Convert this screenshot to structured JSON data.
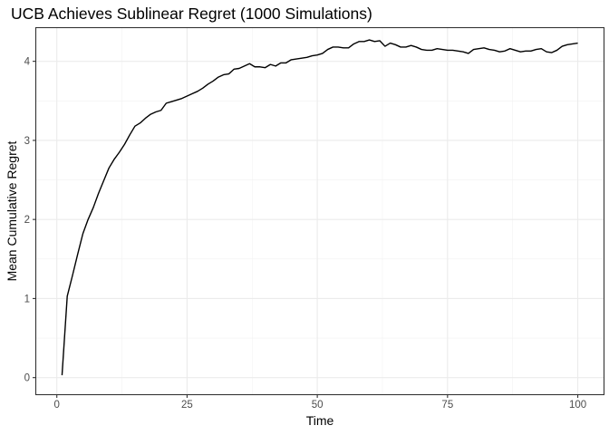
{
  "chart_data": {
    "type": "line",
    "title": "UCB Achieves Sublinear Regret (1000 Simulations)",
    "xlabel": "Time",
    "ylabel": "Mean Cumulative Regret",
    "xlim": [
      -3.95,
      104.95
    ],
    "ylim": [
      -0.21,
      4.42
    ],
    "xticks": [
      0,
      25,
      50,
      75,
      100
    ],
    "yticks": [
      0,
      1,
      2,
      3,
      4
    ],
    "grid": true,
    "legend": "none",
    "line_color": "#000000",
    "series": [
      {
        "x": [
          1,
          2,
          3,
          4,
          5,
          6,
          7,
          8,
          9,
          10,
          11,
          12,
          13,
          14,
          15,
          16,
          17,
          18,
          19,
          20,
          21,
          22,
          23,
          24,
          25,
          26,
          27,
          28,
          29,
          30,
          31,
          32,
          33,
          34,
          35,
          36,
          37,
          38,
          39,
          40,
          41,
          42,
          43,
          44,
          45,
          46,
          47,
          48,
          49,
          50,
          51,
          52,
          53,
          54,
          55,
          56,
          57,
          58,
          59,
          60,
          61,
          62,
          63,
          64,
          65,
          66,
          67,
          68,
          69,
          70,
          71,
          72,
          73,
          74,
          75,
          76,
          77,
          78,
          79,
          80,
          81,
          82,
          83,
          84,
          85,
          86,
          87,
          88,
          89,
          90,
          91,
          92,
          93,
          94,
          95,
          96,
          97,
          98,
          99,
          100
        ],
        "values": [
          0.03,
          1.03,
          1.29,
          1.56,
          1.82,
          2.0,
          2.15,
          2.33,
          2.49,
          2.65,
          2.76,
          2.85,
          2.95,
          3.07,
          3.18,
          3.22,
          3.28,
          3.33,
          3.36,
          3.38,
          3.47,
          3.49,
          3.51,
          3.53,
          3.56,
          3.59,
          3.62,
          3.66,
          3.71,
          3.75,
          3.8,
          3.83,
          3.84,
          3.9,
          3.91,
          3.94,
          3.97,
          3.93,
          3.93,
          3.92,
          3.96,
          3.94,
          3.98,
          3.98,
          4.02,
          4.03,
          4.04,
          4.05,
          4.07,
          4.08,
          4.1,
          4.15,
          4.18,
          4.18,
          4.17,
          4.17,
          4.22,
          4.25,
          4.25,
          4.27,
          4.25,
          4.26,
          4.19,
          4.23,
          4.21,
          4.18,
          4.18,
          4.2,
          4.18,
          4.15,
          4.14,
          4.14,
          4.16,
          4.15,
          4.14,
          4.14,
          4.13,
          4.12,
          4.1,
          4.15,
          4.16,
          4.17,
          4.15,
          4.14,
          4.12,
          4.13,
          4.16,
          4.14,
          4.12,
          4.13,
          4.13,
          4.15,
          4.16,
          4.12,
          4.11,
          4.14,
          4.19,
          4.21,
          4.22,
          4.23
        ]
      }
    ]
  }
}
